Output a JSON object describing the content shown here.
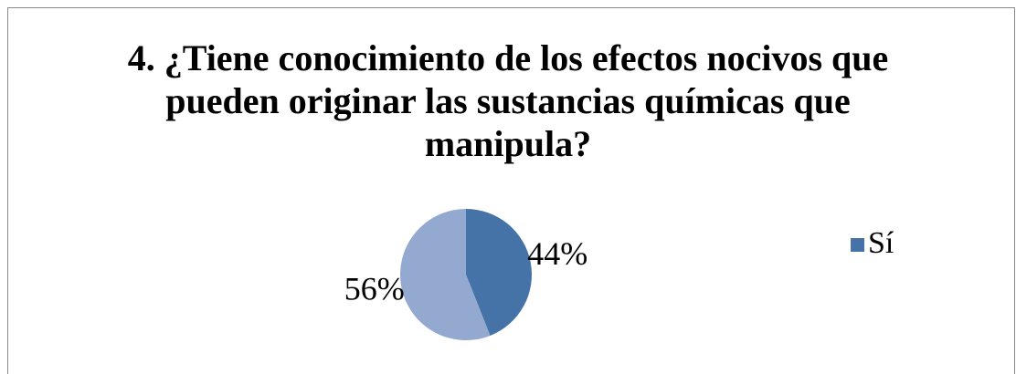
{
  "chart_data": {
    "type": "pie",
    "title": "4. ¿Tiene conocimiento de los efectos nocivos que pueden originar las sustancias químicas que manipula?",
    "categories": [
      "Sí",
      null
    ],
    "values": [
      44,
      56
    ],
    "value_labels": [
      "44%",
      "56%"
    ],
    "colors": [
      "#4572a7",
      "#93a9cf"
    ],
    "legend": "right"
  }
}
